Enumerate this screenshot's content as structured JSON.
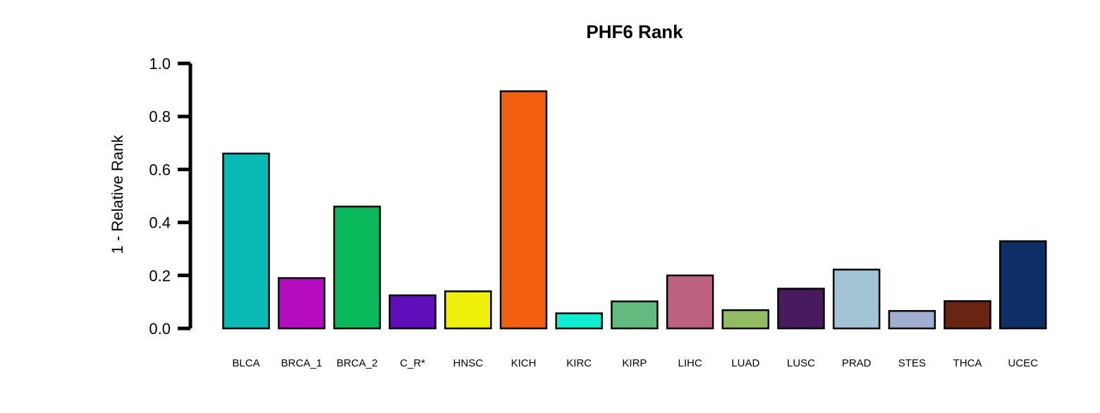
{
  "chart_data": {
    "type": "bar",
    "title": "PHF6 Rank",
    "ylabel": "1 - Relative Rank",
    "xlabel": "",
    "ylim": [
      0,
      1
    ],
    "yticks": [
      "0.0",
      "0.2",
      "0.4",
      "0.6",
      "0.8",
      "1.0"
    ],
    "categories": [
      "BLCA",
      "BRCA_1",
      "BRCA_2",
      "C_R*",
      "HNSC",
      "KICH",
      "KIRC",
      "KIRP",
      "LIHC",
      "LUAD",
      "LUSC",
      "PRAD",
      "STES",
      "THCA",
      "UCEC"
    ],
    "values": [
      0.66,
      0.19,
      0.46,
      0.125,
      0.14,
      0.895,
      0.057,
      0.102,
      0.2,
      0.069,
      0.15,
      0.222,
      0.066,
      0.103,
      0.329
    ],
    "colors": [
      "#0ABAB5",
      "#B40CBE",
      "#08B85A",
      "#600DBA",
      "#EEF00C",
      "#F25F10",
      "#10EED2",
      "#63BA7E",
      "#BD6180",
      "#92BC61",
      "#481A5E",
      "#A0C4D3",
      "#A0AED2",
      "#692512",
      "#0D2F66"
    ],
    "grid": false,
    "legend": "none"
  }
}
